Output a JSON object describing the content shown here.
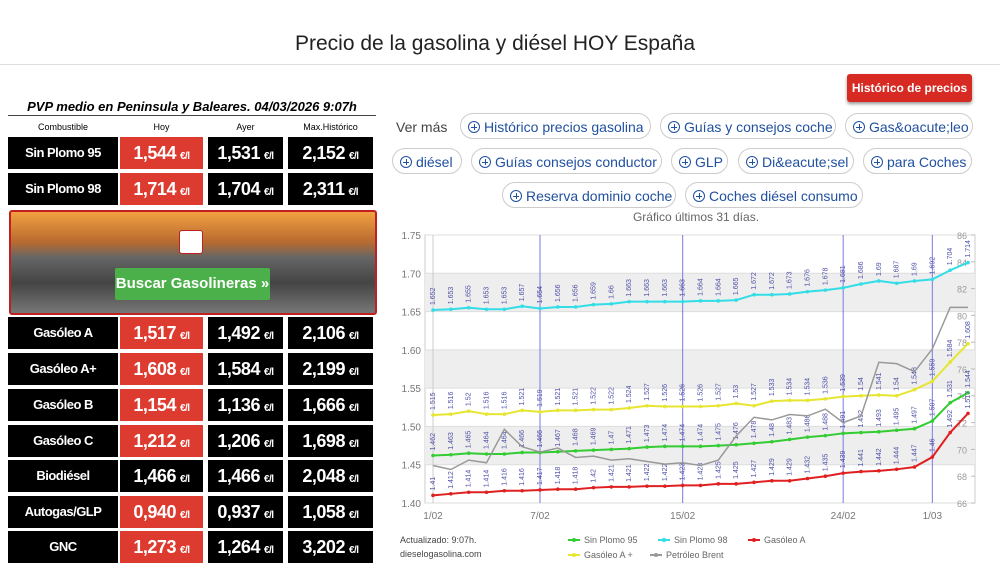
{
  "header": {
    "title": "Precio de la gasolina y diésel HOY España",
    "button": "Histórico de precios »"
  },
  "table": {
    "caption": "PVP medio en Peninsula y Baleares. 04/03/2026 9:07h",
    "columns": [
      "Combustible",
      "Hoy",
      "Ayer",
      "Max.Histórico"
    ],
    "unit": "€/l",
    "up_color": "#dd3a30",
    "same_color": "#000000",
    "rows": [
      {
        "name": "Sin Plomo 95",
        "hoy": "1,544",
        "ayer": "1,531",
        "max": "2,152",
        "hoy_color": "#dd3a30"
      },
      {
        "name": "Sin Plomo 98",
        "hoy": "1,714",
        "ayer": "1,704",
        "max": "2,311",
        "hoy_color": "#dd3a30"
      },
      {
        "name": "Gasóleo A",
        "hoy": "1,517",
        "ayer": "1,492",
        "max": "2,106",
        "hoy_color": "#dd3a30"
      },
      {
        "name": "Gasóleo A+",
        "hoy": "1,608",
        "ayer": "1,584",
        "max": "2,199",
        "hoy_color": "#dd3a30"
      },
      {
        "name": "Gasóleo B",
        "hoy": "1,154",
        "ayer": "1,136",
        "max": "1,666",
        "hoy_color": "#dd3a30"
      },
      {
        "name": "Gasóleo C",
        "hoy": "1,212",
        "ayer": "1,206",
        "max": "1,698",
        "hoy_color": "#dd3a30"
      },
      {
        "name": "Biodiésel",
        "hoy": "1,466",
        "ayer": "1,466",
        "max": "2,048",
        "hoy_color": "#000000"
      },
      {
        "name": "Autogas/GLP",
        "hoy": "0,940",
        "ayer": "0,937",
        "max": "1,058",
        "hoy_color": "#dd3a30"
      },
      {
        "name": "GNC",
        "hoy": "1,273",
        "ayer": "1,264",
        "max": "3,202",
        "hoy_color": "#dd3a30"
      }
    ]
  },
  "banner": {
    "button": "Buscar Gasolineras »"
  },
  "links": {
    "label": "Ver más",
    "items": [
      "Histórico precios gasolina",
      "Guías y consejos coche",
      "Gas&oacute;leo",
      "diésel",
      "Guías consejos conductor",
      "GLP",
      "Di&eacute;sel",
      "para Coches",
      "Reserva dominio coche",
      "Coches diésel consumo"
    ]
  },
  "chart_data": {
    "type": "line",
    "title": "Gráfico últimos 31 días.",
    "note": [
      "Actualizado: 9:07h.",
      "dieselogasolina.com"
    ],
    "categories": [
      "1/02",
      null,
      null,
      null,
      null,
      null,
      "7/02",
      null,
      null,
      null,
      null,
      null,
      null,
      null,
      "15/02",
      null,
      null,
      null,
      null,
      null,
      null,
      null,
      null,
      "24/02",
      null,
      null,
      null,
      null,
      "1/03",
      null,
      null
    ],
    "ylim": [
      1.4,
      1.75
    ],
    "yticks": [
      {
        "value": 1.4,
        "label": "1.40"
      },
      1.45,
      {
        "value": 1.5,
        "label": "1.50"
      },
      1.55,
      {
        "value": 1.6,
        "label": "1.60"
      },
      1.65,
      {
        "value": 1.7,
        "label": "1.70"
      },
      1.75
    ],
    "y2lim": [
      66,
      86
    ],
    "y2ticks": [
      66,
      68,
      70,
      72,
      74,
      76,
      78,
      80,
      82,
      84,
      86
    ],
    "grid": true,
    "series": [
      {
        "name": "Sin Plomo 95",
        "color": "#33cc33",
        "values": [
          1.462,
          1.463,
          1.465,
          1.464,
          1.464,
          1.466,
          1.466,
          1.467,
          1.468,
          1.469,
          1.47,
          1.471,
          1.473,
          1.474,
          1.474,
          1.474,
          1.475,
          1.476,
          1.478,
          1.48,
          1.483,
          1.486,
          1.488,
          1.491,
          1.492,
          1.493,
          1.495,
          1.497,
          1.507,
          1.531,
          1.544
        ]
      },
      {
        "name": "Sin Plomo 98",
        "color": "#33dde6",
        "values": [
          1.652,
          1.653,
          1.655,
          1.653,
          1.653,
          1.657,
          1.654,
          1.656,
          1.656,
          1.659,
          1.66,
          1.663,
          1.663,
          1.663,
          1.663,
          1.664,
          1.664,
          1.665,
          1.672,
          1.672,
          1.673,
          1.676,
          1.678,
          1.681,
          1.686,
          1.69,
          1.687,
          1.69,
          1.692,
          1.704,
          1.714
        ]
      },
      {
        "name": "Gasóleo A",
        "color": "#e02020",
        "values": [
          1.41,
          1.412,
          1.414,
          1.414,
          1.416,
          1.416,
          1.417,
          1.418,
          1.418,
          1.42,
          1.421,
          1.421,
          1.422,
          1.422,
          1.423,
          1.423,
          1.425,
          1.425,
          1.427,
          1.429,
          1.429,
          1.432,
          1.435,
          1.439,
          1.441,
          1.442,
          1.444,
          1.447,
          1.46,
          1.492,
          1.517
        ]
      },
      {
        "name": "Gasóleo A +",
        "color": "#e6e630",
        "values": [
          1.515,
          1.516,
          1.52,
          1.516,
          1.516,
          1.521,
          1.519,
          1.521,
          1.521,
          1.522,
          1.522,
          1.524,
          1.527,
          1.526,
          1.526,
          1.526,
          1.527,
          1.53,
          1.527,
          1.533,
          1.534,
          1.534,
          1.536,
          1.539,
          1.54,
          1.541,
          1.54,
          1.548,
          1.559,
          1.584,
          1.608
        ]
      },
      {
        "name": "Petróleo Brent",
        "color": "#999999",
        "axis": "y2",
        "values": [
          68.8,
          68.5,
          69.2,
          69,
          71.5,
          70.2,
          69.8,
          70.1,
          69.4,
          69.5,
          69.2,
          69.3,
          69.1,
          68.9,
          69,
          68.8,
          69.2,
          71,
          72.4,
          72.2,
          72.6,
          72.5,
          73,
          72,
          72.5,
          76.5,
          76.4,
          75.8,
          77.5,
          80.6,
          80.6
        ]
      }
    ]
  }
}
